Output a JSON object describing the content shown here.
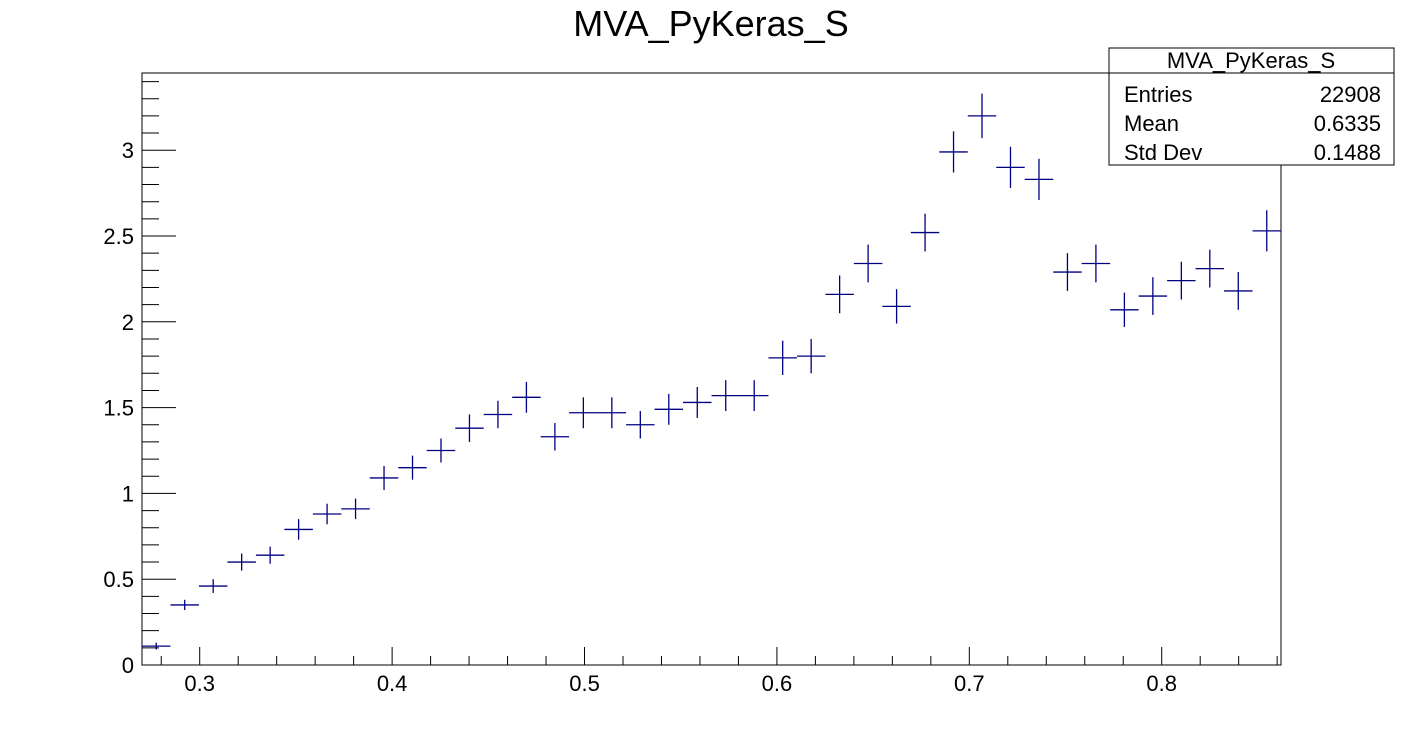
{
  "chart_data": {
    "type": "scatter",
    "title": "MVA_PyKeras_S",
    "xlabel": "",
    "ylabel": "",
    "xlim": [
      0.27,
      0.862
    ],
    "ylim": [
      0,
      3.45
    ],
    "x_ticks": [
      0.3,
      0.4,
      0.5,
      0.6,
      0.7,
      0.8
    ],
    "x_tick_labels": [
      "0.3",
      "0.4",
      "0.5",
      "0.6",
      "0.7",
      "0.8"
    ],
    "y_ticks": [
      0,
      0.5,
      1,
      1.5,
      2,
      2.5,
      3
    ],
    "y_tick_labels": [
      "0",
      "0.5",
      "1",
      "1.5",
      "2",
      "2.5",
      "3"
    ],
    "bin_width": 0.0148,
    "x": [
      0.2774,
      0.2922,
      0.307,
      0.3218,
      0.3366,
      0.3514,
      0.3662,
      0.381,
      0.3958,
      0.4106,
      0.4254,
      0.4402,
      0.455,
      0.4698,
      0.4846,
      0.4994,
      0.5142,
      0.529,
      0.5438,
      0.5586,
      0.5734,
      0.5882,
      0.603,
      0.6178,
      0.6326,
      0.6474,
      0.6622,
      0.677,
      0.6918,
      0.7066,
      0.7214,
      0.7362,
      0.751,
      0.7658,
      0.7806,
      0.7954,
      0.8102,
      0.825,
      0.8398,
      0.8546
    ],
    "values": [
      0.11,
      0.35,
      0.46,
      0.6,
      0.64,
      0.79,
      0.88,
      0.91,
      1.09,
      1.15,
      1.25,
      1.38,
      1.46,
      1.56,
      1.33,
      1.47,
      1.47,
      1.4,
      1.49,
      1.53,
      1.57,
      1.57,
      1.79,
      1.8,
      2.16,
      2.34,
      2.09,
      2.52,
      2.99,
      3.2,
      2.9,
      2.83,
      2.29,
      2.34,
      2.07,
      2.15,
      2.24,
      2.31,
      2.18,
      2.53
    ],
    "errors": [
      0.02,
      0.03,
      0.04,
      0.05,
      0.05,
      0.06,
      0.06,
      0.06,
      0.07,
      0.07,
      0.07,
      0.08,
      0.08,
      0.09,
      0.08,
      0.09,
      0.09,
      0.08,
      0.09,
      0.09,
      0.09,
      0.09,
      0.1,
      0.1,
      0.11,
      0.11,
      0.1,
      0.11,
      0.12,
      0.13,
      0.12,
      0.12,
      0.11,
      0.11,
      0.1,
      0.11,
      0.11,
      0.11,
      0.11,
      0.12
    ],
    "marker_color": "#000080",
    "grid": false,
    "legend": "none",
    "stats_box": {
      "title": "MVA_PyKeras_S",
      "placement": "top-right",
      "rows": [
        {
          "label": "Entries",
          "value": "22908"
        },
        {
          "label": "Mean",
          "value": "0.6335"
        },
        {
          "label": "Std Dev",
          "value": "0.1488"
        }
      ]
    }
  }
}
